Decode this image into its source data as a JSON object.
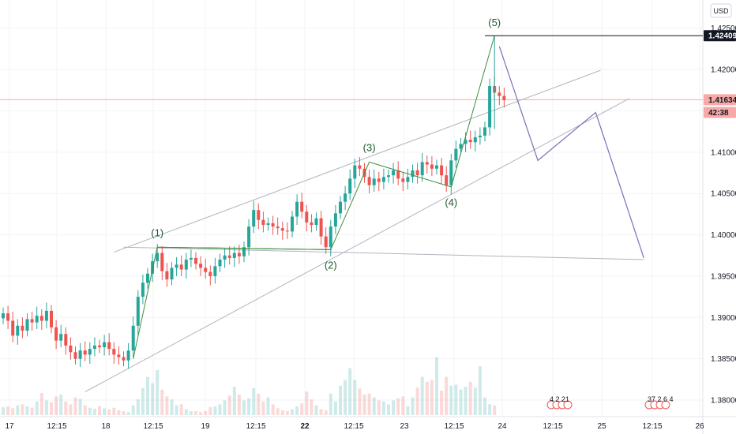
{
  "chart_data": {
    "type": "candlestick",
    "currency": "USD",
    "y_range": [
      1.378,
      1.4265
    ],
    "y_ticks": [
      "1.42500",
      "1.42000",
      "1.41500",
      "1.41000",
      "1.40500",
      "1.40000",
      "1.39500",
      "1.39000",
      "1.38500",
      "1.38000"
    ],
    "x_ticks": [
      "17",
      "12:15",
      "18",
      "12:15",
      "19",
      "12:15",
      "22",
      "12:15",
      "23",
      "12:15",
      "24",
      "12:15",
      "25",
      "12:15",
      "26"
    ],
    "bold_x_ticks": [
      "22"
    ],
    "price_tags": [
      {
        "label": "1.42409",
        "value": 1.42409,
        "style": "black"
      },
      {
        "label": "1.41634",
        "value": 1.41634,
        "style": "red"
      },
      {
        "label": "42:38",
        "value": 1.4148,
        "style": "red"
      }
    ],
    "waves": [
      {
        "label": "(1)",
        "bar": 32,
        "price": 1.3985
      },
      {
        "label": "(2)",
        "bar": 68,
        "price": 1.3982
      },
      {
        "label": "(3)",
        "bar": 76,
        "price": 1.4088
      },
      {
        "label": "(4)",
        "bar": 93,
        "price": 1.4058
      },
      {
        "label": "(5)",
        "bar": 102,
        "price": 1.4241
      }
    ],
    "projection": [
      {
        "bar": 103,
        "price": 1.4228
      },
      {
        "bar": 111,
        "price": 1.409
      },
      {
        "bar": 123,
        "price": 1.4148
      },
      {
        "bar": 133,
        "price": 1.3972
      }
    ],
    "channel_lines": [
      {
        "from": {
          "bar": 23,
          "price": 1.3979
        },
        "to": {
          "bar": 124,
          "price": 1.4199
        }
      },
      {
        "from": {
          "bar": 17,
          "price": 1.381
        },
        "to": {
          "bar": 130,
          "price": 1.4165
        }
      },
      {
        "from": {
          "bar": 25,
          "price": 1.3985
        },
        "to": {
          "bar": 133,
          "price": 1.397
        }
      }
    ],
    "close_series": [
      1.3905,
      1.3896,
      1.3878,
      1.389,
      1.3884,
      1.3898,
      1.3894,
      1.3902,
      1.3896,
      1.3908,
      1.3888,
      1.3872,
      1.388,
      1.3866,
      1.3858,
      1.385,
      1.386,
      1.3855,
      1.3862,
      1.3866,
      1.3864,
      1.387,
      1.3862,
      1.3855,
      1.3852,
      1.3848,
      1.386,
      1.389,
      1.3925,
      1.3942,
      1.3953,
      1.3968,
      1.3978,
      1.3956,
      1.3946,
      1.396,
      1.3964,
      1.3958,
      1.397,
      1.3972,
      1.3965,
      1.396,
      1.3955,
      1.395,
      1.3962,
      1.397,
      1.3975,
      1.3972,
      1.3978,
      1.3974,
      1.3985,
      1.401,
      1.403,
      1.4018,
      1.4012,
      1.4014,
      1.401,
      1.4008,
      1.4005,
      1.4004,
      1.4022,
      1.404,
      1.4028,
      1.4015,
      1.4012,
      1.402,
      1.3998,
      1.3985,
      1.401,
      1.4026,
      1.404,
      1.405,
      1.4068,
      1.4084,
      1.408,
      1.407,
      1.406,
      1.4068,
      1.4064,
      1.407,
      1.4072,
      1.4078,
      1.4068,
      1.4064,
      1.407,
      1.4078,
      1.4072,
      1.4088,
      1.4085,
      1.408,
      1.4084,
      1.4072,
      1.406,
      1.409,
      1.4104,
      1.411,
      1.4115,
      1.4112,
      1.4118,
      1.412,
      1.413,
      1.418,
      1.4172,
      1.4168,
      1.4163
    ],
    "volume_series": [
      16,
      18,
      14,
      20,
      22,
      18,
      15,
      28,
      45,
      30,
      26,
      38,
      42,
      28,
      22,
      36,
      33,
      20,
      15,
      13,
      18,
      14,
      12,
      15,
      10,
      8,
      6,
      20,
      32,
      55,
      78,
      65,
      92,
      52,
      38,
      32,
      20,
      22,
      12,
      8,
      8,
      6,
      8,
      16,
      18,
      22,
      30,
      40,
      58,
      42,
      30,
      34,
      55,
      44,
      28,
      36,
      22,
      14,
      10,
      8,
      12,
      18,
      24,
      48,
      32,
      20,
      12,
      10,
      44,
      28,
      60,
      72,
      96,
      72,
      54,
      42,
      44,
      36,
      30,
      28,
      22,
      30,
      34,
      38,
      18,
      36,
      56,
      78,
      68,
      72,
      118,
      50,
      78,
      60,
      62,
      52,
      58,
      68,
      56,
      100,
      36,
      22,
      20
    ],
    "events": [
      {
        "label": "4 2 21",
        "at": "25 12:15"
      },
      {
        "label": "37 2 6 4",
        "at": "26 12:15"
      }
    ]
  }
}
